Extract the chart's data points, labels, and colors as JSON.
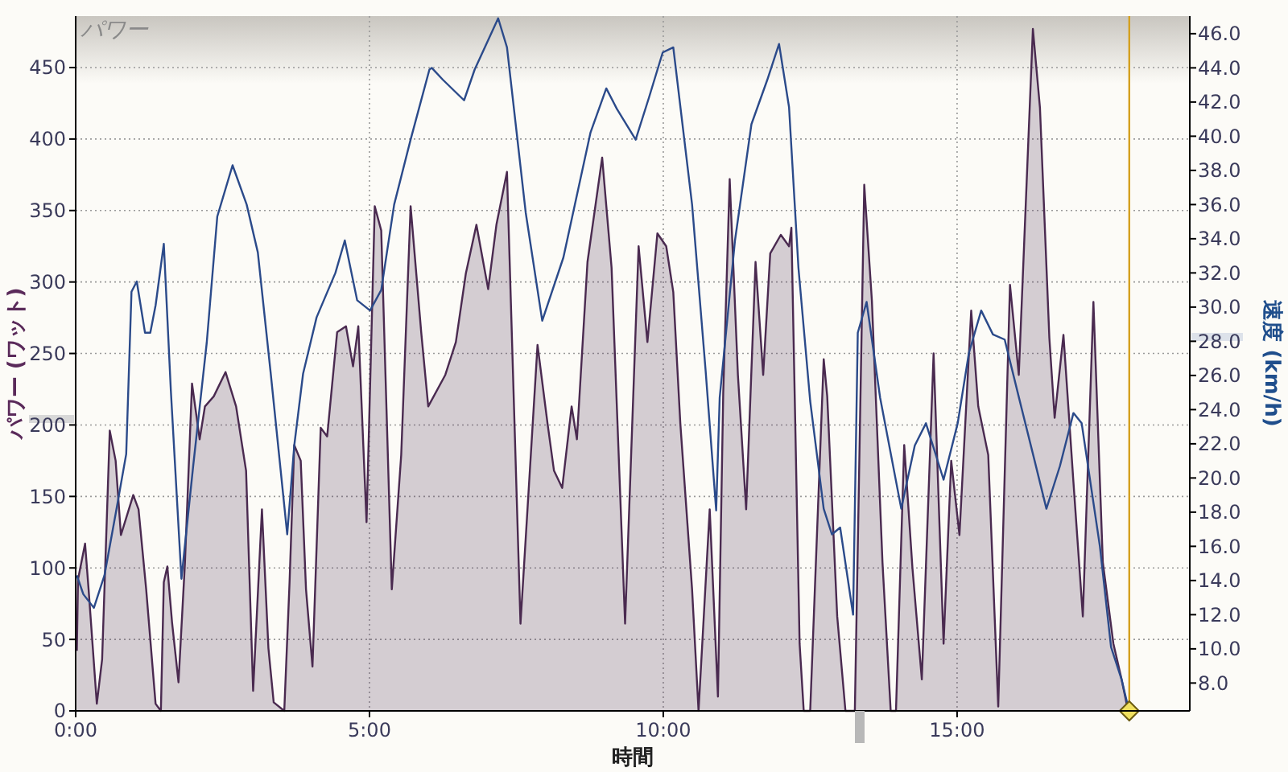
{
  "chart_data": {
    "type": "area",
    "title": "パワー",
    "xlabel": "時間",
    "ylabel": "パワー (ワット)",
    "y2label": "速度 (km/h)",
    "xlim": [
      0,
      18.96
    ],
    "xticks": [
      {
        "value": 0,
        "label": "0:00"
      },
      {
        "value": 5,
        "label": "5:00"
      },
      {
        "value": 10,
        "label": "10:00"
      },
      {
        "value": 15,
        "label": "15:00"
      }
    ],
    "ylim": [
      0,
      486
    ],
    "yticks": [
      0,
      50,
      100,
      150,
      200,
      250,
      300,
      350,
      400,
      450
    ],
    "y2lim": [
      6.37,
      47.03
    ],
    "y2ticks": [
      {
        "value": 8,
        "label": "8.0"
      },
      {
        "value": 10,
        "label": "10.0"
      },
      {
        "value": 12,
        "label": "12.0"
      },
      {
        "value": 14,
        "label": "14.0"
      },
      {
        "value": 16,
        "label": "16.0"
      },
      {
        "value": 18,
        "label": "18.0"
      },
      {
        "value": 20,
        "label": "20.0"
      },
      {
        "value": 22,
        "label": "22.0"
      },
      {
        "value": 24,
        "label": "24.0"
      },
      {
        "value": 26,
        "label": "26.0"
      },
      {
        "value": 28,
        "label": "28.0"
      },
      {
        "value": 30,
        "label": "30.0"
      },
      {
        "value": 32,
        "label": "32.0"
      },
      {
        "value": 34,
        "label": "34.0"
      },
      {
        "value": 36,
        "label": "36.0"
      },
      {
        "value": 38,
        "label": "38.0"
      },
      {
        "value": 40,
        "label": "40.0"
      },
      {
        "value": 42,
        "label": "42.0"
      },
      {
        "value": 44,
        "label": "44.0"
      },
      {
        "value": 46,
        "label": "46.0"
      }
    ],
    "grid": true,
    "ref_lines": [
      {
        "axis": "x",
        "value": 17.93,
        "color": "#d4a020"
      }
    ],
    "series": [
      {
        "color": "#4a2a50",
        "x": [
          0.02,
          0.04,
          0.16,
          0.22,
          0.36,
          0.45,
          0.58,
          0.68,
          0.77,
          0.98,
          1.07,
          1.2,
          1.36,
          1.45,
          1.5,
          1.56,
          1.64,
          1.75,
          1.86,
          1.98,
          2.11,
          2.2,
          2.35,
          2.55,
          2.73,
          2.9,
          3.02,
          3.17,
          3.28,
          3.37,
          3.55,
          3.64,
          3.72,
          3.83,
          3.92,
          4.03,
          4.17,
          4.28,
          4.45,
          4.6,
          4.72,
          4.81,
          4.95,
          5.09,
          5.2,
          5.38,
          5.54,
          5.7,
          5.88,
          6.0,
          6.29,
          6.47,
          6.64,
          6.82,
          7.02,
          7.16,
          7.34,
          7.57,
          7.86,
          8.03,
          8.14,
          8.28,
          8.44,
          8.53,
          8.71,
          8.96,
          9.12,
          9.35,
          9.58,
          9.73,
          9.9,
          10.05,
          10.17,
          10.29,
          10.49,
          10.6,
          10.79,
          10.93,
          11.02,
          11.13,
          11.27,
          11.41,
          11.57,
          11.7,
          11.82,
          12.0,
          12.14,
          12.18,
          12.32,
          12.39,
          12.5,
          12.73,
          12.79,
          12.96,
          13.1,
          13.26,
          13.42,
          13.55,
          13.73,
          13.87,
          13.96,
          14.1,
          14.24,
          14.4,
          14.6,
          14.77,
          14.9,
          15.04,
          15.24,
          15.36,
          15.53,
          15.7,
          15.9,
          16.05,
          16.29,
          16.41,
          16.57,
          16.66,
          16.81,
          16.98,
          17.14,
          17.32,
          17.48,
          17.66,
          17.8,
          17.91
        ],
        "values": [
          42,
          92,
          117,
          85,
          5,
          36,
          196,
          175,
          123,
          151,
          141,
          85,
          5,
          0,
          90,
          101,
          62,
          20,
          104,
          229,
          190,
          213,
          220,
          237,
          213,
          168,
          14,
          141,
          44,
          6,
          0,
          90,
          186,
          175,
          85,
          31,
          198,
          192,
          265,
          269,
          241,
          269,
          132,
          353,
          336,
          85,
          179,
          353,
          265,
          213,
          235,
          258,
          306,
          340,
          295,
          340,
          377,
          61,
          256,
          201,
          168,
          156,
          213,
          190,
          314,
          387,
          310,
          61,
          325,
          258,
          334,
          325,
          293,
          201,
          85,
          0,
          141,
          10,
          222,
          372,
          235,
          141,
          314,
          235,
          320,
          333,
          325,
          338,
          47,
          0,
          0,
          246,
          220,
          66,
          0,
          0,
          368,
          287,
          104,
          0,
          0,
          186,
          100,
          22,
          250,
          47,
          175,
          123,
          280,
          213,
          179,
          3,
          298,
          235,
          477,
          422,
          261,
          205,
          263,
          160,
          66,
          286,
          104,
          47,
          22,
          0
        ]
      },
      {
        "type": "line",
        "axis": "y2",
        "color": "#2b4a8a",
        "x": [
          0.02,
          0.13,
          0.31,
          0.49,
          0.68,
          0.86,
          0.95,
          1.04,
          1.18,
          1.27,
          1.36,
          1.5,
          1.62,
          1.8,
          2.0,
          2.23,
          2.41,
          2.67,
          2.91,
          3.1,
          3.32,
          3.46,
          3.6,
          3.72,
          3.87,
          4.1,
          4.42,
          4.58,
          4.79,
          5.01,
          5.2,
          5.42,
          5.7,
          6.02,
          6.06,
          6.25,
          6.61,
          6.79,
          7.19,
          7.34,
          7.66,
          7.94,
          8.3,
          8.76,
          9.03,
          9.21,
          9.53,
          9.76,
          9.99,
          10.17,
          10.49,
          10.72,
          10.9,
          10.96,
          11.22,
          11.5,
          11.77,
          11.97,
          12.14,
          12.3,
          12.5,
          12.73,
          12.87,
          13.01,
          13.23,
          13.31,
          13.46,
          13.69,
          14.05,
          14.28,
          14.47,
          14.77,
          15.01,
          15.2,
          15.41,
          15.61,
          15.81,
          16.06,
          16.32,
          16.52,
          16.75,
          16.98,
          17.12,
          17.43,
          17.62,
          17.8,
          17.91
        ],
        "values": [
          14.3,
          13.2,
          12.4,
          14.3,
          17.9,
          21.4,
          30.9,
          31.5,
          28.5,
          28.5,
          30.1,
          33.7,
          25.1,
          14.1,
          20.7,
          27.9,
          35.3,
          38.3,
          36.0,
          33.2,
          26.1,
          21.4,
          16.7,
          21.9,
          26.1,
          29.4,
          32.0,
          33.9,
          30.4,
          29.8,
          31.0,
          36.0,
          39.8,
          43.9,
          44.0,
          43.3,
          42.1,
          43.9,
          46.9,
          45.2,
          35.5,
          29.2,
          32.9,
          40.2,
          42.8,
          41.6,
          39.8,
          42.3,
          44.9,
          45.2,
          36.0,
          26.3,
          18.1,
          24.7,
          33.9,
          40.7,
          43.3,
          45.4,
          41.7,
          32.3,
          24.5,
          18.2,
          16.7,
          17.1,
          12.0,
          28.5,
          30.3,
          24.7,
          18.2,
          21.9,
          23.2,
          19.9,
          23.2,
          27.3,
          29.8,
          28.4,
          28.1,
          24.6,
          21.0,
          18.2,
          20.7,
          23.8,
          23.2,
          16.0,
          10.1,
          8.2,
          6.6
        ]
      }
    ]
  }
}
